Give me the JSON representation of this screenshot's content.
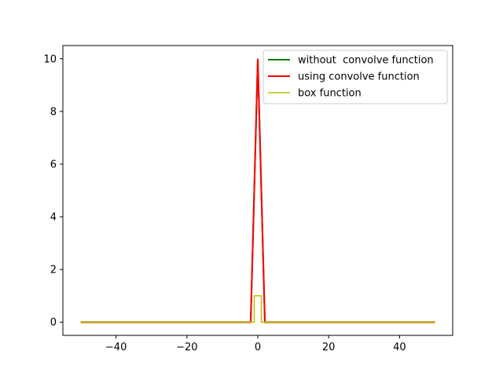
{
  "chart_data": {
    "type": "line",
    "title": "",
    "xlabel": "",
    "ylabel": "",
    "xlim": [
      -55,
      55
    ],
    "ylim": [
      -0.5,
      10.5
    ],
    "xticks": [
      -40,
      -20,
      0,
      20,
      40
    ],
    "xtick_labels": [
      "−40",
      "−20",
      "0",
      "20",
      "40"
    ],
    "yticks": [
      0,
      2,
      4,
      6,
      8,
      10
    ],
    "ytick_labels": [
      "0",
      "2",
      "4",
      "6",
      "8",
      "10"
    ],
    "grid": false,
    "legend_position": "top-right",
    "series": [
      {
        "name": "without  convolve function",
        "color": "#008000",
        "x": [
          -50,
          -2,
          0,
          2,
          50
        ],
        "y": [
          0,
          0,
          10,
          0,
          0
        ]
      },
      {
        "name": "using convolve function",
        "color": "#ff0000",
        "x": [
          -50,
          -2,
          0,
          2,
          50
        ],
        "y": [
          0,
          0,
          10,
          0,
          0
        ]
      },
      {
        "name": "box function",
        "color": "#bfbf00",
        "x": [
          -50,
          -1,
          -1,
          1,
          1,
          50
        ],
        "y": [
          0,
          0,
          1,
          1,
          0,
          0
        ]
      }
    ]
  }
}
